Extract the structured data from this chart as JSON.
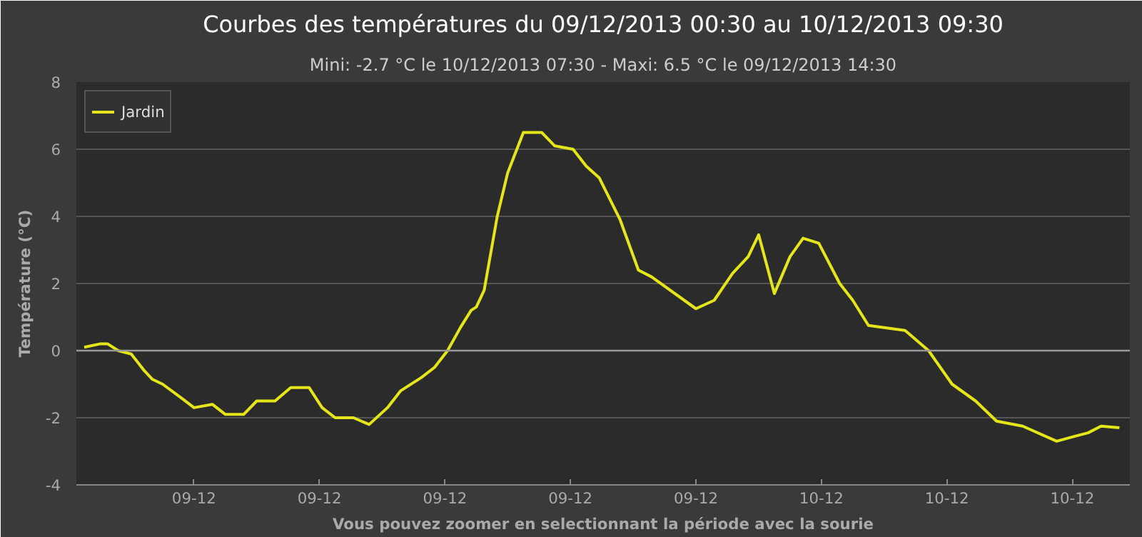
{
  "chart_data": {
    "type": "line",
    "title": "Courbes des températures du 09/12/2013 00:30 au 10/12/2013 09:30",
    "subtitle": "Mini: -2.7 °C le 10/12/2013 07:30 - Maxi: 6.5 °C le 09/12/2013 14:30",
    "xlabel": "Vous pouvez zoomer en selectionnant la période avec la sourie",
    "ylabel": "Température (°C)",
    "x": [
      "2013-12-09T00:30",
      "2013-12-09T01:00",
      "2013-12-09T01:15",
      "2013-12-09T01:35",
      "2013-12-09T02:00",
      "2013-12-09T02:25",
      "2013-12-09T02:40",
      "2013-12-09T03:00",
      "2013-12-09T03:35",
      "2013-12-09T04:00",
      "2013-12-09T04:35",
      "2013-12-09T05:00",
      "2013-12-09T05:35",
      "2013-12-09T06:00",
      "2013-12-09T06:35",
      "2013-12-09T07:05",
      "2013-12-09T07:40",
      "2013-12-09T08:05",
      "2013-12-09T08:30",
      "2013-12-09T09:05",
      "2013-12-09T09:35",
      "2013-12-09T10:10",
      "2013-12-09T10:35",
      "2013-12-09T11:15",
      "2013-12-09T11:40",
      "2013-12-09T12:05",
      "2013-12-09T12:30",
      "2013-12-09T12:50",
      "2013-12-09T13:00",
      "2013-12-09T13:15",
      "2013-12-09T13:40",
      "2013-12-09T14:00",
      "2013-12-09T14:30",
      "2013-12-09T15:05",
      "2013-12-09T15:30",
      "2013-12-09T16:05",
      "2013-12-09T16:30",
      "2013-12-09T16:55",
      "2013-12-09T17:35",
      "2013-12-09T18:10",
      "2013-12-09T18:35",
      "2013-12-09T20:00",
      "2013-12-09T20:35",
      "2013-12-09T21:10",
      "2013-12-09T21:40",
      "2013-12-09T22:00",
      "2013-12-09T22:30",
      "2013-12-09T23:00",
      "2013-12-09T23:25",
      "2013-12-09T23:55",
      "2013-12-10T00:35",
      "2013-12-10T01:00",
      "2013-12-10T01:30",
      "2013-12-10T02:40",
      "2013-12-10T03:25",
      "2013-12-10T04:10",
      "2013-12-10T04:55",
      "2013-12-10T05:35",
      "2013-12-10T06:25",
      "2013-12-10T07:30",
      "2013-12-10T08:05",
      "2013-12-10T08:30",
      "2013-12-10T08:55",
      "2013-12-10T09:30"
    ],
    "series": [
      {
        "name": "Jardin",
        "color": "#e5e619",
        "values": [
          0.1,
          0.2,
          0.2,
          0.0,
          -0.1,
          -0.6,
          -0.85,
          -1.0,
          -1.4,
          -1.7,
          -1.6,
          -1.9,
          -1.9,
          -1.5,
          -1.5,
          -1.1,
          -1.1,
          -1.7,
          -2.0,
          -2.0,
          -2.2,
          -1.7,
          -1.2,
          -0.8,
          -0.5,
          0.0,
          0.7,
          1.2,
          1.3,
          1.8,
          4.0,
          5.3,
          6.5,
          6.5,
          6.1,
          6.0,
          5.5,
          5.15,
          3.9,
          2.4,
          2.2,
          1.25,
          1.5,
          2.3,
          2.8,
          3.45,
          1.7,
          2.8,
          3.35,
          3.2,
          2.0,
          1.5,
          0.75,
          0.6,
          0.0,
          -1.0,
          -1.5,
          -2.1,
          -2.25,
          -2.7,
          -2.55,
          -2.45,
          -2.25,
          -2.3
        ]
      }
    ],
    "xlim": [
      "2013-12-09T00:15",
      "2013-12-10T09:50"
    ],
    "xticks": [
      {
        "value": "2013-12-09T04:00",
        "label": "09-12"
      },
      {
        "value": "2013-12-09T08:00",
        "label": "09-12"
      },
      {
        "value": "2013-12-09T12:00",
        "label": "09-12"
      },
      {
        "value": "2013-12-09T16:00",
        "label": "09-12"
      },
      {
        "value": "2013-12-09T20:00",
        "label": "09-12"
      },
      {
        "value": "2013-12-10T00:00",
        "label": "10-12"
      },
      {
        "value": "2013-12-10T04:00",
        "label": "10-12"
      },
      {
        "value": "2013-12-10T08:00",
        "label": "10-12"
      }
    ],
    "ylim": [
      -4,
      8
    ],
    "yticks": [
      -4,
      -2,
      0,
      2,
      4,
      6,
      8
    ],
    "ref_lines": [
      {
        "axis": "y",
        "value": 0,
        "color": "#999999"
      }
    ],
    "grid": "y",
    "legend": "top left",
    "marker": "none",
    "line_style": "solid"
  }
}
